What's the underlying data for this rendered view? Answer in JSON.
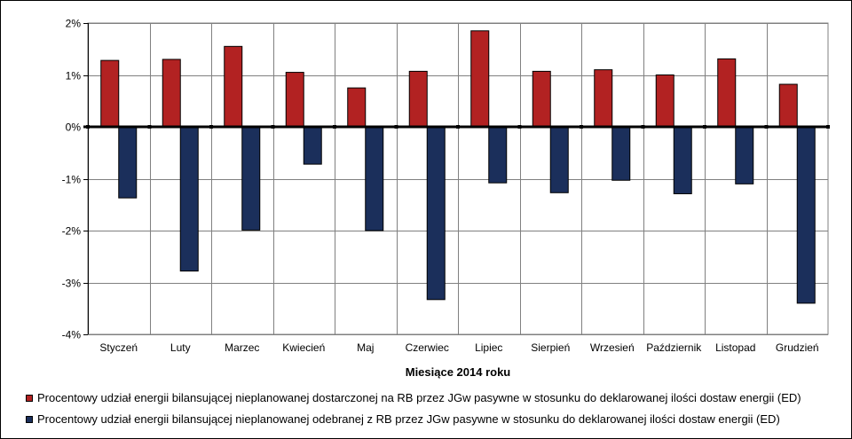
{
  "chart_data": {
    "type": "bar",
    "xlabel": "Miesiące 2014 roku",
    "ylabel": "",
    "ylim": [
      -4,
      2
    ],
    "yticks": [
      -4,
      -3,
      -2,
      -1,
      0,
      1,
      2
    ],
    "ytick_labels": [
      "-4%",
      "-3%",
      "-2%",
      "-1%",
      "0%",
      "1%",
      "2%"
    ],
    "grid": true,
    "legend_position": "bottom",
    "categories": [
      "Styczeń",
      "Luty",
      "Marzec",
      "Kwiecień",
      "Maj",
      "Czerwiec",
      "Lipiec",
      "Sierpień",
      "Wrzesień",
      "Październik",
      "Listopad",
      "Grudzień"
    ],
    "series": [
      {
        "name": "Procentowy udział energii bilansującej nieplanowanej dostarczonej na RB przez JGw pasywne w stosunku do deklarowanej ilości dostaw energii (ED)",
        "color": "#B22222",
        "values": [
          1.28,
          1.3,
          1.55,
          1.05,
          0.75,
          1.07,
          1.85,
          1.07,
          1.1,
          1.0,
          1.31,
          0.82
        ]
      },
      {
        "name": "Procentowy udział energii bilansującej nieplanowanej odebranej z RB przez JGw pasywne w stosunku do deklarowanej ilości dostaw energii (ED)",
        "color": "#1B2F5B",
        "values": [
          -1.37,
          -2.78,
          -1.99,
          -0.72,
          -2.0,
          -3.33,
          -1.08,
          -1.27,
          -1.03,
          -1.29,
          -1.1,
          -3.4
        ]
      }
    ]
  }
}
